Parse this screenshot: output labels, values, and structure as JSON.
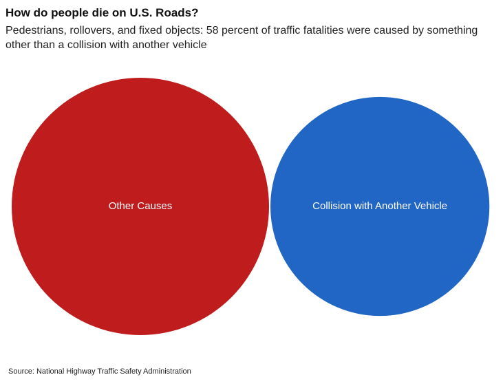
{
  "header": {
    "title": "How do people die on U.S. Roads?",
    "subtitle": "Pedestrians, rollovers, and fixed objects: 58 percent of traffic fatalities were caused by something other than a collision with another vehicle"
  },
  "chart_data": {
    "type": "bubble",
    "title": "How do people die on U.S. Roads?",
    "subtitle": "Pedestrians, rollovers, and fixed objects: 58 percent of traffic fatalities were caused by something other than a collision with another vehicle",
    "items": [
      {
        "label": "Other Causes",
        "value": 58,
        "color": "#bf1c1e"
      },
      {
        "label": "Collision with Another Vehicle",
        "value": 42,
        "color": "#2166c4"
      }
    ],
    "legend": "none"
  },
  "footer": {
    "source": "Source: National Highway Traffic Safety Administration"
  }
}
